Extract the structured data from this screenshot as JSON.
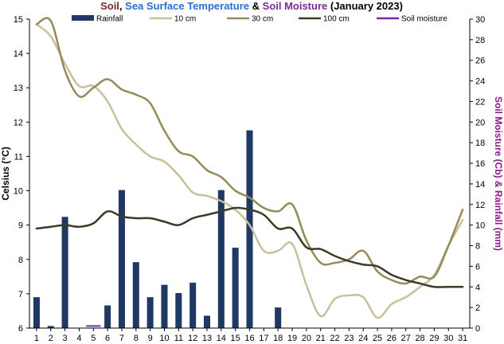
{
  "chart_data": {
    "type": "bar+line",
    "title_parts": [
      {
        "text": "Soil",
        "color": "#7a2b2b"
      },
      {
        "text": ", ",
        "color": "#000000"
      },
      {
        "text": "Sea Surface Temperature",
        "color": "#2b6fcf"
      },
      {
        "text": " & ",
        "color": "#000000"
      },
      {
        "text": "Soil Moisture",
        "color": "#7b2b96"
      },
      {
        "text": " (January 2023)",
        "color": "#000000"
      }
    ],
    "ylabel_left": "Celsius (°C)",
    "ylabel_right": "Soil Moisture (Cb) & Rainfall (mm)",
    "ylabel_right_color": "#8b1a8b",
    "right_tick_color": "#8b1a8b",
    "x": [
      1,
      2,
      3,
      4,
      5,
      6,
      7,
      8,
      9,
      10,
      11,
      12,
      13,
      14,
      15,
      16,
      17,
      18,
      19,
      20,
      21,
      22,
      23,
      24,
      25,
      26,
      27,
      28,
      29,
      30,
      31
    ],
    "x_tick_labels": [
      "1",
      "2",
      "3",
      "4",
      "5",
      "6",
      "7",
      "8",
      "9",
      "10",
      "11",
      "12",
      "13",
      "14",
      "15",
      "16",
      "17",
      "18",
      "19",
      "20",
      "21",
      "22",
      "23",
      "24",
      "25",
      "26",
      "27",
      "28",
      "29",
      "30",
      "31"
    ],
    "ylim_left": [
      6,
      15
    ],
    "yticks_left": [
      "6",
      "7",
      "8",
      "9",
      "10",
      "11",
      "12",
      "13",
      "14",
      "15"
    ],
    "ylim_right": [
      0,
      30
    ],
    "yticks_right": [
      "0",
      "2",
      "4",
      "6",
      "8",
      "10",
      "12",
      "14",
      "16",
      "18",
      "20",
      "22",
      "24",
      "26",
      "28",
      "30"
    ],
    "series": [
      {
        "name": "Rainfall",
        "kind": "bar",
        "axis": "right",
        "color": "#1f3864",
        "values": [
          3.0,
          0.2,
          10.8,
          0,
          0,
          2.2,
          13.4,
          6.4,
          3.0,
          4.2,
          3.4,
          4.4,
          1.2,
          13.4,
          7.8,
          19.2,
          0,
          2.0,
          0,
          0,
          0,
          0,
          0,
          0,
          0,
          0,
          0,
          0,
          0,
          0,
          0
        ]
      },
      {
        "name": "10 cm",
        "kind": "line",
        "axis": "left",
        "color": "#c8c09a",
        "width": 2.5,
        "values": [
          14.85,
          14.5,
          13.7,
          13.05,
          13.05,
          12.6,
          11.8,
          11.35,
          11.0,
          10.85,
          10.45,
          9.95,
          9.85,
          9.7,
          9.45,
          9.0,
          8.25,
          8.25,
          8.45,
          7.25,
          6.35,
          6.85,
          6.95,
          6.9,
          6.3,
          6.7,
          6.9,
          7.2,
          7.55,
          8.4,
          9.15
        ]
      },
      {
        "name": "30 cm",
        "kind": "line",
        "axis": "left",
        "color": "#958a5a",
        "width": 2.5,
        "values": [
          14.85,
          14.95,
          13.5,
          12.75,
          13.0,
          13.25,
          12.95,
          12.8,
          12.55,
          11.75,
          11.15,
          11.0,
          10.6,
          10.4,
          10.0,
          9.8,
          9.5,
          9.4,
          9.6,
          8.55,
          7.9,
          7.9,
          8.0,
          8.25,
          7.65,
          7.4,
          7.3,
          7.5,
          7.5,
          8.4,
          9.45
        ]
      },
      {
        "name": "100 cm",
        "kind": "line",
        "axis": "left",
        "color": "#3d3a28",
        "width": 2.5,
        "values": [
          8.9,
          8.95,
          9.0,
          8.95,
          9.05,
          9.4,
          9.25,
          9.2,
          9.2,
          9.1,
          9.0,
          9.2,
          9.3,
          9.4,
          9.5,
          9.45,
          9.3,
          8.9,
          8.9,
          8.35,
          8.3,
          8.1,
          7.95,
          7.85,
          7.8,
          7.55,
          7.4,
          7.3,
          7.2,
          7.2,
          7.2
        ]
      },
      {
        "name": "Soil moisture",
        "kind": "line",
        "axis": "right",
        "color": "#7030a0",
        "width": 2,
        "values": [
          null,
          null,
          null,
          null,
          0.2,
          null,
          null,
          null,
          null,
          null,
          null,
          null,
          null,
          null,
          null,
          null,
          null,
          null,
          null,
          null,
          null,
          null,
          null,
          null,
          null,
          null,
          null,
          null,
          null,
          null,
          null
        ]
      }
    ],
    "legend": [
      "Rainfall",
      "10 cm",
      "30 cm",
      "100 cm",
      "Soil moisture"
    ],
    "legend_position": "top",
    "grid": false
  }
}
